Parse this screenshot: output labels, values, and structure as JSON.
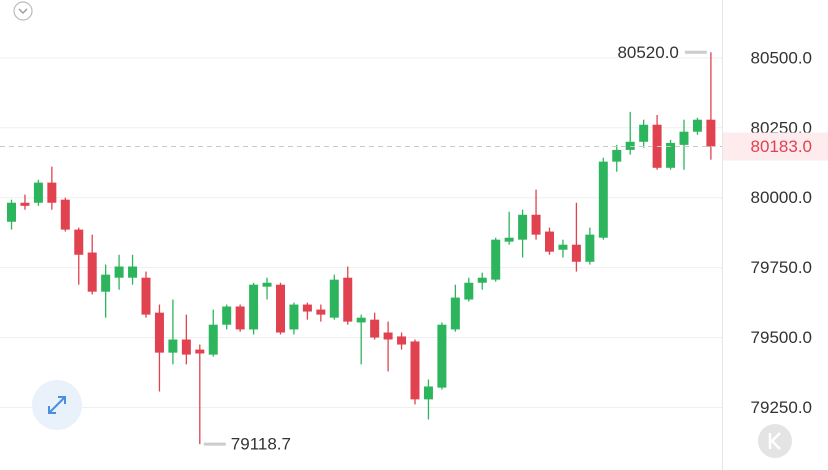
{
  "chart_data": {
    "type": "candlestick",
    "up_color": "#2db55d",
    "down_color": "#e0424f",
    "ylim": [
      79055,
      80707
    ],
    "yticks": [
      {
        "value": 80500,
        "label": "80500.0"
      },
      {
        "value": 80250,
        "label": "80250.0"
      },
      {
        "value": 80000,
        "label": "80000.0"
      },
      {
        "value": 79750,
        "label": "79750.0"
      },
      {
        "value": 79500,
        "label": "79500.0"
      },
      {
        "value": 79250,
        "label": "79250.0"
      }
    ],
    "grid": true,
    "open": [
      79914,
      79982,
      79982,
      80054,
      79993,
      79886,
      79804,
      79664,
      79714,
      79714,
      79714,
      79589,
      79446,
      79493,
      79457,
      79439,
      79546,
      79611,
      79529,
      79682,
      79689,
      79529,
      79618,
      79600,
      79571,
      79714,
      79554,
      79564,
      79518,
      79504,
      79486,
      79279,
      79321,
      79529,
      79636,
      79696,
      79707,
      79843,
      79850,
      79939,
      79879,
      79814,
      79832,
      79771,
      79857,
      80129,
      80171,
      80200,
      80261,
      80107,
      80189,
      80236,
      80279
    ],
    "high": [
      79993,
      80011,
      80064,
      80111,
      80000,
      79893,
      79868,
      79761,
      79796,
      79796,
      79736,
      79618,
      79636,
      79582,
      79475,
      79600,
      79618,
      79618,
      79696,
      79714,
      79696,
      79625,
      79625,
      79618,
      79725,
      79754,
      79582,
      79589,
      79557,
      79518,
      79493,
      79350,
      79554,
      79689,
      79714,
      79732,
      79857,
      79950,
      79957,
      80029,
      79893,
      79850,
      79982,
      79893,
      80143,
      80189,
      80307,
      80279,
      80296,
      80207,
      80279,
      80286,
      80520
    ],
    "low": [
      79886,
      79957,
      79971,
      79957,
      79879,
      79689,
      79654,
      79571,
      79671,
      79689,
      79571,
      79307,
      79404,
      79404,
      79118.7,
      79432,
      79529,
      79521,
      79511,
      79636,
      79511,
      79511,
      79564,
      79557,
      79564,
      79546,
      79404,
      79493,
      79379,
      79457,
      79261,
      79207,
      79314,
      79521,
      79629,
      79671,
      79700,
      79832,
      79786,
      79850,
      79796,
      79786,
      79736,
      79761,
      79850,
      80093,
      80154,
      80179,
      80100,
      80100,
      80100,
      80225,
      80136
    ],
    "close": [
      79982,
      79971,
      80054,
      79982,
      79886,
      79796,
      79664,
      79725,
      79754,
      79754,
      79582,
      79446,
      79493,
      79439,
      79443,
      79546,
      79611,
      79529,
      79689,
      79696,
      79518,
      79618,
      79593,
      79582,
      79707,
      79557,
      79571,
      79500,
      79493,
      79475,
      79279,
      79325,
      79546,
      79643,
      79696,
      79714,
      79850,
      79857,
      79939,
      79868,
      79807,
      79832,
      79771,
      79868,
      80129,
      80171,
      80200,
      80261,
      80107,
      80196,
      80236,
      80279,
      80183
    ],
    "max_label": {
      "value": 80520,
      "label": "80520.0"
    },
    "min_label": {
      "value": 79118.7,
      "label": "79118.7"
    },
    "last_price": {
      "value": 80183,
      "label": "80183.0"
    }
  }
}
